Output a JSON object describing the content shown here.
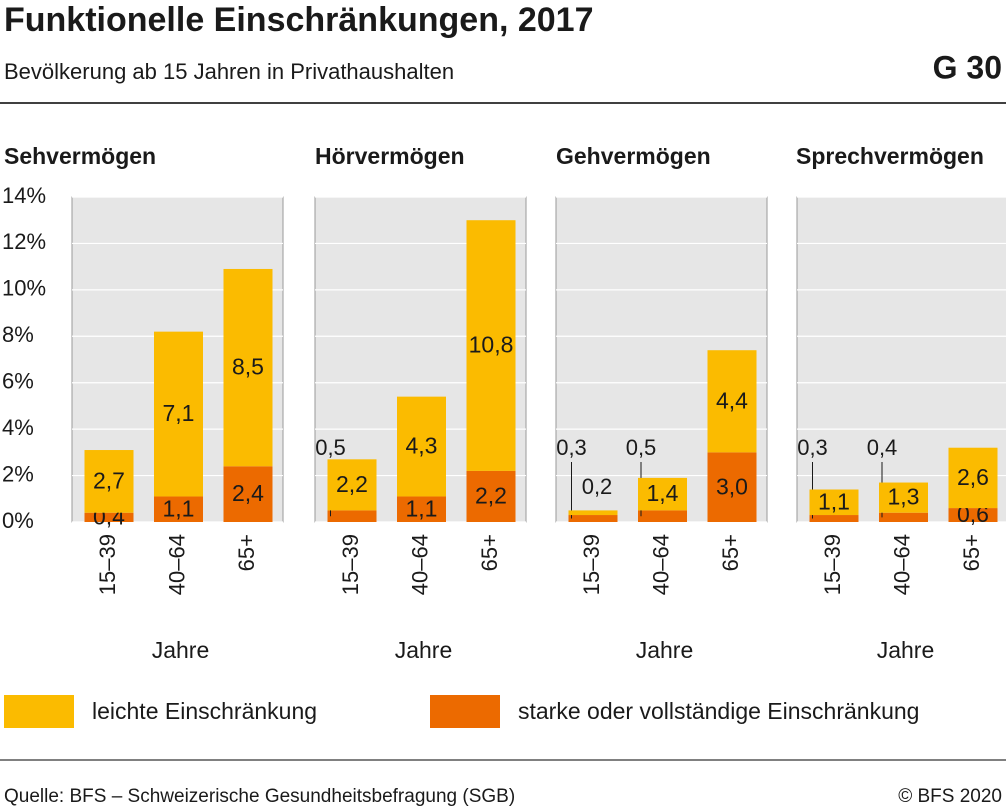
{
  "header": {
    "title": "Funktionelle Einschränkungen, 2017",
    "subtitle": "Bevölkerung ab 15 Jahren in Privathaushalten",
    "code": "G 30"
  },
  "chart_data": {
    "type": "bar",
    "stacked": true,
    "grid": true,
    "ylim": [
      0,
      14
    ],
    "yticks": [
      {
        "value": 0,
        "label": "0%"
      },
      {
        "value": 2,
        "label": "2%"
      },
      {
        "value": 4,
        "label": "4%"
      },
      {
        "value": 6,
        "label": "6%"
      },
      {
        "value": 8,
        "label": "8%"
      },
      {
        "value": 10,
        "label": "10%"
      },
      {
        "value": 12,
        "label": "12%"
      },
      {
        "value": 14,
        "label": "14%"
      }
    ],
    "categories": [
      "15–39",
      "40–64",
      "65+"
    ],
    "xlabel": "Jahre",
    "legend": "bottom",
    "series": [
      {
        "name": "leichte Einschränkung",
        "color": "#fbbb00"
      },
      {
        "name": "starke oder vollständige Einschränkung",
        "color": "#ec6a00"
      }
    ],
    "panels": [
      {
        "title": "Sehvermögen",
        "series": [
          {
            "values": [
              2.7,
              7.1,
              8.5
            ],
            "value_labels": [
              "2,7",
              "7,1",
              "8,5"
            ]
          },
          {
            "values": [
              0.4,
              1.1,
              2.4
            ],
            "value_labels": [
              "0,4",
              "1,1",
              "2,4"
            ]
          }
        ]
      },
      {
        "title": "Hörvermögen",
        "series": [
          {
            "values": [
              2.2,
              4.3,
              10.8
            ],
            "value_labels": [
              "2,2",
              "4,3",
              "10,8"
            ]
          },
          {
            "values": [
              0.5,
              1.1,
              2.2
            ],
            "value_labels": [
              "0,5",
              "1,1",
              "2,2"
            ]
          }
        ]
      },
      {
        "title": "Gehvermögen",
        "series": [
          {
            "values": [
              0.2,
              1.4,
              4.4
            ],
            "value_labels": [
              "0,2",
              "1,4",
              "4,4"
            ]
          },
          {
            "values": [
              0.3,
              0.5,
              3.0
            ],
            "value_labels": [
              "0,3",
              "0,5",
              "3,0"
            ]
          }
        ]
      },
      {
        "title": "Sprechvermögen",
        "series": [
          {
            "values": [
              1.1,
              1.3,
              2.6
            ],
            "value_labels": [
              "1,1",
              "1,3",
              "2,6"
            ]
          },
          {
            "values": [
              0.3,
              0.4,
              0.6
            ],
            "value_labels": [
              "0,3",
              "0,4",
              "0,6"
            ]
          }
        ]
      }
    ]
  },
  "footer": {
    "source": "Quelle: BFS – Schweizerische Gesundheitsbefragung (SGB)",
    "copyright": "© BFS 2020"
  }
}
